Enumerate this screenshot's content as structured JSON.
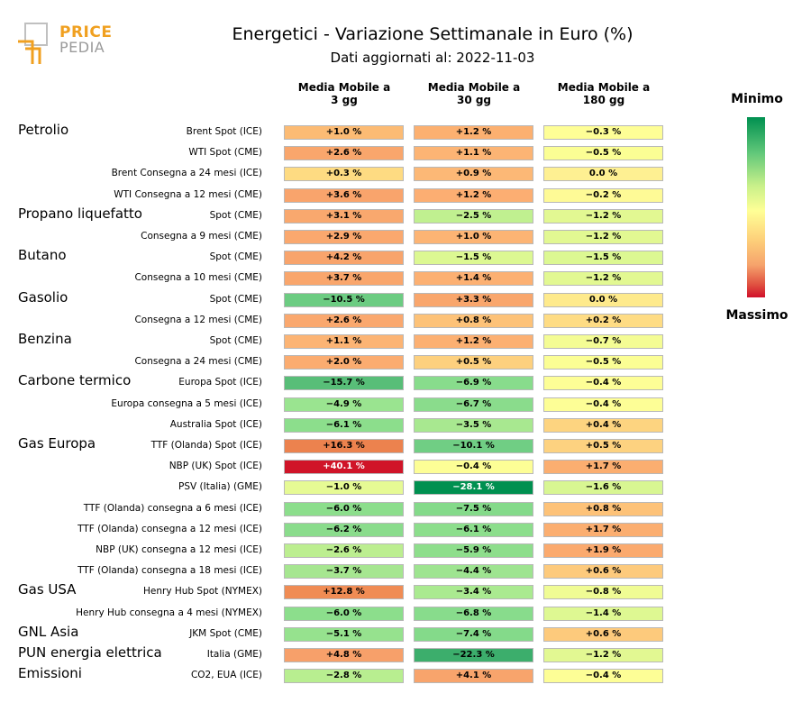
{
  "logo": {
    "line1": "PRICE",
    "line2": "PEDIA"
  },
  "header": {
    "title": "Energetici - Variazione Settimanale in Euro (%)",
    "subtitle": "Dati aggiornati al: 2022-11-03"
  },
  "colorbar": {
    "min_label": "Minimo",
    "max_label": "Massimo"
  },
  "chart_data": {
    "type": "heatmap",
    "title": "Energetici - Variazione Settimanale in Euro (%)",
    "columns": [
      "Media Mobile a 3 gg",
      "Media Mobile a 30 gg",
      "Media Mobile a 180 gg"
    ],
    "column_lines": [
      [
        "Media Mobile a",
        "3 gg"
      ],
      [
        "Media Mobile a",
        "30 gg"
      ],
      [
        "Media Mobile a",
        "180 gg"
      ]
    ],
    "rows": [
      {
        "group": "Petrolio",
        "label": "Brent Spot (ICE)",
        "values": [
          "+1.0 %",
          "+1.2 %",
          "−0.3 %"
        ],
        "colors": [
          "#fcbb74",
          "#fcb070",
          "#fefe96"
        ]
      },
      {
        "group": "",
        "label": "WTI Spot (CME)",
        "values": [
          "+2.6 %",
          "+1.1 %",
          "−0.5 %"
        ],
        "colors": [
          "#f9a66c",
          "#fcb474",
          "#fbfe94"
        ]
      },
      {
        "group": "",
        "label": "Brent Consegna a 24 mesi (ICE)",
        "values": [
          "+0.3 %",
          "+0.9 %",
          "0.0 %"
        ],
        "colors": [
          "#fedb82",
          "#fcb876",
          "#fef092"
        ]
      },
      {
        "group": "",
        "label": "WTI Consegna a 12 mesi (CME)",
        "values": [
          "+3.6 %",
          "+1.2 %",
          "−0.2 %"
        ],
        "colors": [
          "#f9a46c",
          "#fcae72",
          "#fefa96"
        ]
      },
      {
        "group": "Propano liquefatto",
        "label": "Spot (CME)",
        "values": [
          "+3.1 %",
          "−2.5 %",
          "−1.2 %"
        ],
        "colors": [
          "#f9a86e",
          "#c0f090",
          "#e2f892"
        ]
      },
      {
        "group": "",
        "label": "Consegna a 9 mesi (CME)",
        "values": [
          "+2.9 %",
          "+1.0 %",
          "−1.2 %"
        ],
        "colors": [
          "#faa86e",
          "#fcb474",
          "#e2f892"
        ]
      },
      {
        "group": "Butano",
        "label": "Spot (CME)",
        "values": [
          "+4.2 %",
          "−1.5 %",
          "−1.5 %"
        ],
        "colors": [
          "#f8a46c",
          "#dcf892",
          "#dcf892"
        ]
      },
      {
        "group": "",
        "label": "Consegna a 10 mesi (CME)",
        "values": [
          "+3.7 %",
          "+1.4 %",
          "−1.2 %"
        ],
        "colors": [
          "#f9a66c",
          "#fcb072",
          "#e2f892"
        ]
      },
      {
        "group": "Gasolio",
        "label": "Spot (CME)",
        "values": [
          "−10.5 %",
          "+3.3 %",
          "0.0 %"
        ],
        "colors": [
          "#6ccc82",
          "#f9a66c",
          "#feea8c"
        ]
      },
      {
        "group": "",
        "label": "Consegna a 12 mesi (CME)",
        "values": [
          "+2.6 %",
          "+0.8 %",
          "+0.2 %"
        ],
        "colors": [
          "#faa86e",
          "#fdc278",
          "#fedc84"
        ]
      },
      {
        "group": "Benzina",
        "label": "Spot (CME)",
        "values": [
          "+1.1 %",
          "+1.2 %",
          "−0.7 %"
        ],
        "colors": [
          "#fcb474",
          "#fcb072",
          "#f4fc94"
        ]
      },
      {
        "group": "",
        "label": "Consegna a 24 mesi (CME)",
        "values": [
          "+2.0 %",
          "+0.5 %",
          "−0.5 %"
        ],
        "colors": [
          "#fbac70",
          "#fdd07e",
          "#fbfe94"
        ]
      },
      {
        "group": "Carbone termico",
        "label": "Europa Spot (ICE)",
        "values": [
          "−15.7 %",
          "−6.9 %",
          "−0.4 %"
        ],
        "colors": [
          "#58be78",
          "#88dc8c",
          "#fdfe96"
        ]
      },
      {
        "group": "",
        "label": "Europa consegna a 5 mesi (ICE)",
        "values": [
          "−4.9 %",
          "−6.7 %",
          "−0.4 %"
        ],
        "colors": [
          "#9ae490",
          "#8adc8c",
          "#fdfe96"
        ]
      },
      {
        "group": "",
        "label": "Australia Spot (ICE)",
        "values": [
          "−6.1 %",
          "−3.5 %",
          "+0.4 %"
        ],
        "colors": [
          "#8cde8c",
          "#a8e890",
          "#fdd480"
        ]
      },
      {
        "group": "Gas Europa",
        "label": "TTF (Olanda) Spot (ICE)",
        "values": [
          "+16.3 %",
          "−10.1 %",
          "+0.5 %"
        ],
        "colors": [
          "#ec824e",
          "#70ce84",
          "#fdd280"
        ]
      },
      {
        "group": "",
        "label": "NBP (UK) Spot (ICE)",
        "values": [
          "+40.1 %",
          "−0.4 %",
          "+1.7 %"
        ],
        "colors": [
          "#d01428",
          "#fdfe96",
          "#fbae70"
        ]
      },
      {
        "group": "",
        "label": "PSV (Italia) (GME)",
        "values": [
          "−1.0 %",
          "−28.1 %",
          "−1.6 %"
        ],
        "colors": [
          "#e6fa94",
          "#009050",
          "#d8f692"
        ]
      },
      {
        "group": "",
        "label": "TTF (Olanda) consegna a 6 mesi (ICE)",
        "values": [
          "−6.0 %",
          "−7.5 %",
          "+0.8 %"
        ],
        "colors": [
          "#8cde8c",
          "#84da8a",
          "#fdc278"
        ]
      },
      {
        "group": "",
        "label": "TTF (Olanda) consegna a 12 mesi (ICE)",
        "values": [
          "−6.2 %",
          "−6.1 %",
          "+1.7 %"
        ],
        "colors": [
          "#8adc8c",
          "#8cde8c",
          "#fbae70"
        ]
      },
      {
        "group": "",
        "label": "NBP (UK) consegna a 12 mesi (ICE)",
        "values": [
          "−2.6 %",
          "−5.9 %",
          "+1.9 %"
        ],
        "colors": [
          "#bcee90",
          "#8ede8c",
          "#fbaa6e"
        ]
      },
      {
        "group": "",
        "label": "TTF (Olanda) consegna a 18 mesi (ICE)",
        "values": [
          "−3.7 %",
          "−4.4 %",
          "+0.6 %"
        ],
        "colors": [
          "#a6e690",
          "#9ee490",
          "#fdca7c"
        ]
      },
      {
        "group": "Gas USA",
        "label": "Henry Hub Spot (NYMEX)",
        "values": [
          "+12.8 %",
          "−3.4 %",
          "−0.8 %"
        ],
        "colors": [
          "#f08c54",
          "#aaea90",
          "#f0fc94"
        ]
      },
      {
        "group": "",
        "label": "Henry Hub consegna a 4 mesi (NYMEX)",
        "values": [
          "−6.0 %",
          "−6.8 %",
          "−1.4 %"
        ],
        "colors": [
          "#8cde8c",
          "#88dc8c",
          "#def892"
        ]
      },
      {
        "group": "GNL Asia",
        "label": "JKM Spot (CME)",
        "values": [
          "−5.1 %",
          "−7.4 %",
          "+0.6 %"
        ],
        "colors": [
          "#96e28e",
          "#84da8a",
          "#fdca7c"
        ]
      },
      {
        "group": "PUN energia elettrica",
        "label": "Italia (GME)",
        "values": [
          "+4.8 %",
          "−22.3 %",
          "−1.2 %"
        ],
        "colors": [
          "#f7a06a",
          "#3cae6c",
          "#e2f892"
        ]
      },
      {
        "group": "Emissioni",
        "label": "CO2, EUA (ICE)",
        "values": [
          "−2.8 %",
          "+4.1 %",
          "−0.4 %"
        ],
        "colors": [
          "#b8ee90",
          "#f8a46c",
          "#fdfe96"
        ]
      }
    ],
    "colorbar": {
      "top_label": "Minimo",
      "bottom_label": "Massimo"
    }
  }
}
